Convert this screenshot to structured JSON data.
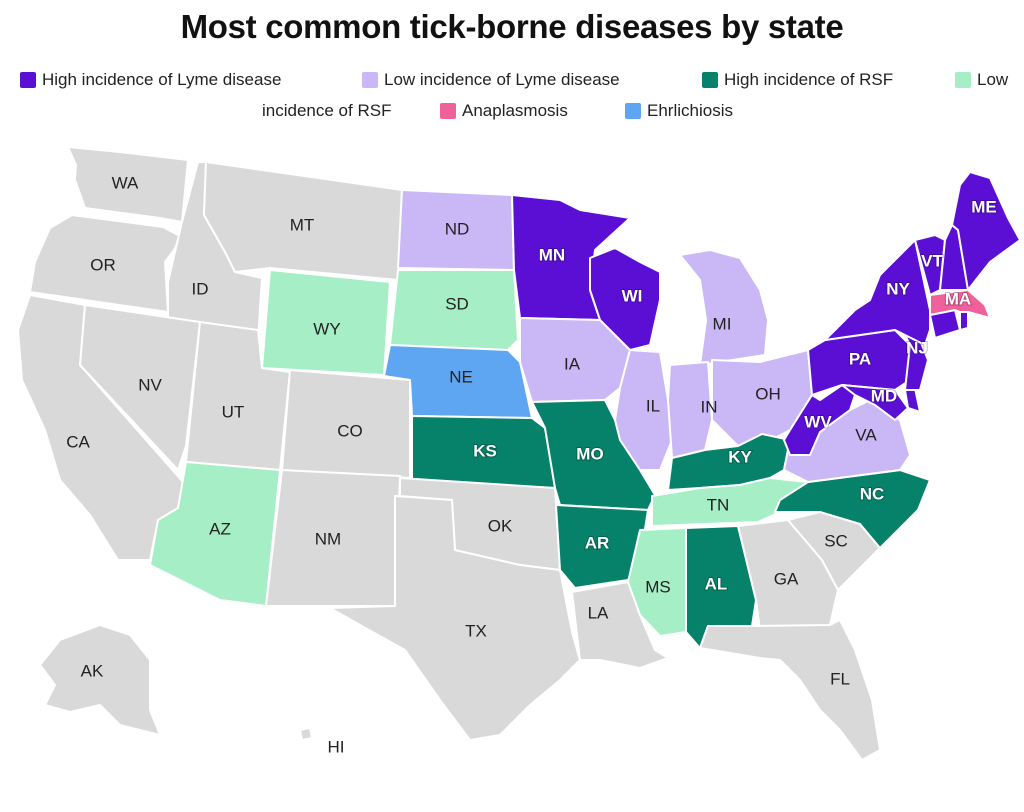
{
  "title": "Most common tick-borne diseases by state",
  "colors": {
    "high_lyme": "#5B0FD4",
    "low_lyme": "#C9B8F5",
    "high_rsf": "#06826A",
    "low_rsf": "#A6EEC5",
    "anaplasmosis": "#F0619B",
    "ehrlichiosis": "#5EA6F2",
    "none": "#D9D9D9"
  },
  "legend": [
    {
      "key": "high_lyme",
      "label": "High incidence of Lyme disease"
    },
    {
      "key": "low_lyme",
      "label": "Low incidence of Lyme disease"
    },
    {
      "key": "high_rsf",
      "label": "High incidence of RSF"
    },
    {
      "key": "low_rsf",
      "label": "Low"
    },
    {
      "key": "low_rsf_cont",
      "label": "incidence of RSF"
    },
    {
      "key": "anaplasmosis",
      "label": "Anaplasmosis"
    },
    {
      "key": "ehrlichiosis",
      "label": "Ehrlichiosis"
    }
  ],
  "states": [
    {
      "abbr": "WA",
      "category": "none"
    },
    {
      "abbr": "OR",
      "category": "none"
    },
    {
      "abbr": "CA",
      "category": "none"
    },
    {
      "abbr": "ID",
      "category": "none"
    },
    {
      "abbr": "NV",
      "category": "none"
    },
    {
      "abbr": "MT",
      "category": "none"
    },
    {
      "abbr": "WY",
      "category": "low_rsf"
    },
    {
      "abbr": "UT",
      "category": "none"
    },
    {
      "abbr": "CO",
      "category": "none"
    },
    {
      "abbr": "AZ",
      "category": "low_rsf"
    },
    {
      "abbr": "NM",
      "category": "none"
    },
    {
      "abbr": "ND",
      "category": "low_lyme"
    },
    {
      "abbr": "SD",
      "category": "low_rsf"
    },
    {
      "abbr": "NE",
      "category": "ehrlichiosis"
    },
    {
      "abbr": "KS",
      "category": "high_rsf"
    },
    {
      "abbr": "OK",
      "category": "none"
    },
    {
      "abbr": "TX",
      "category": "none"
    },
    {
      "abbr": "MN",
      "category": "high_lyme"
    },
    {
      "abbr": "IA",
      "category": "low_lyme"
    },
    {
      "abbr": "MO",
      "category": "high_rsf"
    },
    {
      "abbr": "AR",
      "category": "high_rsf"
    },
    {
      "abbr": "LA",
      "category": "none"
    },
    {
      "abbr": "WI",
      "category": "high_lyme"
    },
    {
      "abbr": "IL",
      "category": "low_lyme"
    },
    {
      "abbr": "MI",
      "category": "low_lyme"
    },
    {
      "abbr": "IN",
      "category": "low_lyme"
    },
    {
      "abbr": "OH",
      "category": "low_lyme"
    },
    {
      "abbr": "KY",
      "category": "high_rsf"
    },
    {
      "abbr": "TN",
      "category": "low_rsf"
    },
    {
      "abbr": "MS",
      "category": "low_rsf"
    },
    {
      "abbr": "AL",
      "category": "high_rsf"
    },
    {
      "abbr": "GA",
      "category": "none"
    },
    {
      "abbr": "FL",
      "category": "none"
    },
    {
      "abbr": "SC",
      "category": "none"
    },
    {
      "abbr": "NC",
      "category": "high_rsf"
    },
    {
      "abbr": "VA",
      "category": "low_lyme"
    },
    {
      "abbr": "WV",
      "category": "high_lyme"
    },
    {
      "abbr": "PA",
      "category": "high_lyme"
    },
    {
      "abbr": "MD",
      "category": "high_lyme"
    },
    {
      "abbr": "DE",
      "category": "high_lyme"
    },
    {
      "abbr": "NJ",
      "category": "high_lyme"
    },
    {
      "abbr": "NY",
      "category": "high_lyme"
    },
    {
      "abbr": "CT",
      "category": "high_lyme"
    },
    {
      "abbr": "RI",
      "category": "high_lyme"
    },
    {
      "abbr": "MA",
      "category": "anaplasmosis"
    },
    {
      "abbr": "VT",
      "category": "high_lyme"
    },
    {
      "abbr": "NH",
      "category": "high_lyme"
    },
    {
      "abbr": "ME",
      "category": "high_lyme"
    },
    {
      "abbr": "AK",
      "category": "none"
    },
    {
      "abbr": "HI",
      "category": "none"
    }
  ]
}
